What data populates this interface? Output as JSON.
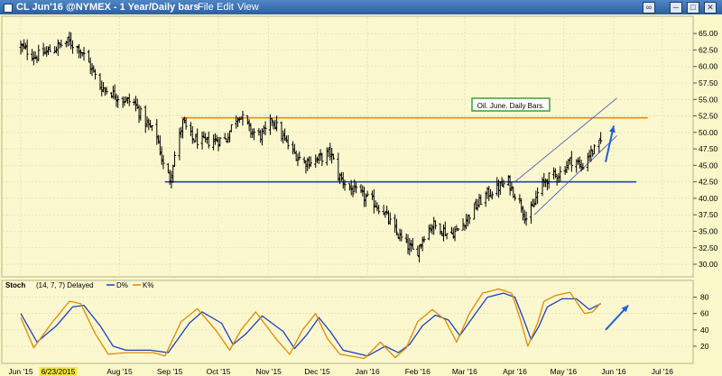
{
  "window": {
    "title": "CL Jun'16 @NYMEX - 1 Year/Daily bars",
    "menu": [
      "File",
      "Edit",
      "View"
    ]
  },
  "colors": {
    "background": "#faf7c8",
    "panel_bg": "#fbf8cf",
    "resistance": "#f28c00",
    "support": "#1f3fbf",
    "channel": "#3a4fbf",
    "arrow": "#1f5fd6",
    "stoch_d": "#1f3fbf",
    "stoch_k": "#e08a00",
    "highlight": "#f5e642"
  },
  "chart_data": [
    {
      "type": "ohlc",
      "name": "price",
      "x_ticks": [
        "Jun '15",
        "6/23/2015",
        "Aug '15",
        "Sep '15",
        "Oct '15",
        "Nov '15",
        "Dec '15",
        "Jan '16",
        "Feb '16",
        "Mar '16",
        "Apr '16",
        "May '16",
        "Jun '16",
        "Jul '16"
      ],
      "x_tick_dates": [
        "2015-06-01",
        "2015-06-23",
        "2015-08-01",
        "2015-09-01",
        "2015-10-01",
        "2015-11-01",
        "2015-12-01",
        "2016-01-01",
        "2016-02-01",
        "2016-03-01",
        "2016-04-01",
        "2016-05-01",
        "2016-06-01",
        "2016-07-01"
      ],
      "highlighted_date_label": "6/23/2015",
      "y_ticks": [
        "30.00",
        "32.50",
        "35.00",
        "37.50",
        "40.00",
        "42.50",
        "45.00",
        "47.50",
        "50.00",
        "52.50",
        "55.00",
        "57.50",
        "60.00",
        "62.50",
        "65.00"
      ],
      "ylim": [
        28.5,
        66.8
      ],
      "close_path": [
        [
          "2015-06-01",
          63.0
        ],
        [
          "2015-06-10",
          61.5
        ],
        [
          "2015-06-20",
          62.5
        ],
        [
          "2015-06-30",
          63.8
        ],
        [
          "2015-07-07",
          62.8
        ],
        [
          "2015-07-13",
          60.5
        ],
        [
          "2015-07-20",
          57.0
        ],
        [
          "2015-07-27",
          56.0
        ],
        [
          "2015-08-03",
          55.0
        ],
        [
          "2015-08-10",
          54.5
        ],
        [
          "2015-08-17",
          51.5
        ],
        [
          "2015-08-24",
          49.5
        ],
        [
          "2015-08-28",
          45.0
        ],
        [
          "2015-09-01",
          43.0
        ],
        [
          "2015-09-04",
          46.5
        ],
        [
          "2015-09-09",
          51.5
        ],
        [
          "2015-09-15",
          49.0
        ],
        [
          "2015-09-22",
          48.5
        ],
        [
          "2015-09-29",
          48.8
        ],
        [
          "2015-10-06",
          49.0
        ],
        [
          "2015-10-10",
          51.5
        ],
        [
          "2015-10-14",
          52.8
        ],
        [
          "2015-10-21",
          50.2
        ],
        [
          "2015-10-27",
          49.5
        ],
        [
          "2015-11-01",
          50.5
        ],
        [
          "2015-11-03",
          52.2
        ],
        [
          "2015-11-09",
          49.5
        ],
        [
          "2015-11-16",
          47.0
        ],
        [
          "2015-11-23",
          45.5
        ],
        [
          "2015-11-30",
          45.8
        ],
        [
          "2015-12-05",
          46.3
        ],
        [
          "2015-12-09",
          47.0
        ],
        [
          "2015-12-14",
          43.5
        ],
        [
          "2015-12-21",
          41.5
        ],
        [
          "2015-12-28",
          40.5
        ],
        [
          "2016-01-04",
          39.5
        ],
        [
          "2016-01-11",
          38.0
        ],
        [
          "2016-01-18",
          35.0
        ],
        [
          "2016-01-25",
          33.0
        ],
        [
          "2016-01-31",
          31.5
        ],
        [
          "2016-02-05",
          34.5
        ],
        [
          "2016-02-10",
          36.0
        ],
        [
          "2016-02-15",
          35.5
        ],
        [
          "2016-02-20",
          34.5
        ],
        [
          "2016-02-25",
          35.0
        ],
        [
          "2016-03-01",
          36.5
        ],
        [
          "2016-03-07",
          38.5
        ],
        [
          "2016-03-14",
          40.5
        ],
        [
          "2016-03-21",
          41.5
        ],
        [
          "2016-03-28",
          42.5
        ],
        [
          "2016-03-31",
          41.0
        ],
        [
          "2016-04-04",
          39.5
        ],
        [
          "2016-04-08",
          37.0
        ],
        [
          "2016-04-12",
          38.5
        ],
        [
          "2016-04-16",
          41.5
        ],
        [
          "2016-04-21",
          43.0
        ],
        [
          "2016-04-26",
          43.5
        ],
        [
          "2016-04-30",
          44.0
        ],
        [
          "2016-05-04",
          45.5
        ],
        [
          "2016-05-08",
          46.0
        ],
        [
          "2016-05-12",
          44.5
        ],
        [
          "2016-05-16",
          46.5
        ],
        [
          "2016-05-21",
          47.5
        ],
        [
          "2016-05-24",
          48.5
        ]
      ],
      "annotation": "Oil. June. Daily Bars.",
      "horizontal_lines": [
        {
          "role": "resistance",
          "value": 52.2,
          "start": "2015-09-08",
          "end": "2016-06-22"
        },
        {
          "role": "support",
          "value": 42.5,
          "start": "2015-08-29",
          "end": "2016-06-15"
        }
      ],
      "channel_lines": [
        {
          "start": [
            "2016-04-13",
            37.5
          ],
          "end": [
            "2016-06-03",
            49.5
          ]
        },
        {
          "start": [
            "2016-04-01",
            42.5
          ],
          "end": [
            "2016-06-03",
            55.2
          ]
        }
      ],
      "arrow": {
        "start": [
          "2016-05-27",
          45.5
        ],
        "end": [
          "2016-06-01",
          51.0
        ]
      }
    },
    {
      "type": "line",
      "name": "stochastic",
      "label": "Stoch",
      "params": "(14, 7, 7) Delayed",
      "legend": [
        "D%",
        "K%"
      ],
      "y_ticks": [
        "20",
        "40",
        "60",
        "80"
      ],
      "ylim": [
        0,
        95
      ],
      "series": [
        {
          "name": "D%",
          "points": [
            [
              "2015-06-01",
              60
            ],
            [
              "2015-06-11",
              25
            ],
            [
              "2015-06-23",
              45
            ],
            [
              "2015-07-03",
              68
            ],
            [
              "2015-07-10",
              70
            ],
            [
              "2015-07-20",
              45
            ],
            [
              "2015-07-28",
              20
            ],
            [
              "2015-08-05",
              15
            ],
            [
              "2015-08-20",
              15
            ],
            [
              "2015-08-31",
              12
            ],
            [
              "2015-09-13",
              48
            ],
            [
              "2015-09-21",
              62
            ],
            [
              "2015-10-03",
              48
            ],
            [
              "2015-10-10",
              22
            ],
            [
              "2015-10-18",
              35
            ],
            [
              "2015-10-28",
              57
            ],
            [
              "2015-11-10",
              38
            ],
            [
              "2015-11-17",
              17
            ],
            [
              "2015-11-25",
              35
            ],
            [
              "2015-12-02",
              55
            ],
            [
              "2015-12-09",
              38
            ],
            [
              "2015-12-17",
              15
            ],
            [
              "2016-01-01",
              8
            ],
            [
              "2016-01-12",
              20
            ],
            [
              "2016-01-20",
              12
            ],
            [
              "2016-01-27",
              22
            ],
            [
              "2016-02-04",
              45
            ],
            [
              "2016-02-12",
              58
            ],
            [
              "2016-02-20",
              52
            ],
            [
              "2016-02-27",
              33
            ],
            [
              "2016-03-07",
              58
            ],
            [
              "2016-03-15",
              80
            ],
            [
              "2016-03-25",
              85
            ],
            [
              "2016-04-01",
              80
            ],
            [
              "2016-04-06",
              55
            ],
            [
              "2016-04-11",
              28
            ],
            [
              "2016-04-16",
              45
            ],
            [
              "2016-04-21",
              68
            ],
            [
              "2016-04-30",
              78
            ],
            [
              "2016-05-09",
              78
            ],
            [
              "2016-05-17",
              65
            ],
            [
              "2016-05-24",
              72
            ]
          ]
        },
        {
          "name": "K%",
          "points": [
            [
              "2015-06-01",
              55
            ],
            [
              "2015-06-09",
              18
            ],
            [
              "2015-06-20",
              48
            ],
            [
              "2015-07-01",
              75
            ],
            [
              "2015-07-08",
              72
            ],
            [
              "2015-07-17",
              35
            ],
            [
              "2015-07-25",
              10
            ],
            [
              "2015-08-05",
              12
            ],
            [
              "2015-08-22",
              12
            ],
            [
              "2015-08-29",
              8
            ],
            [
              "2015-09-08",
              50
            ],
            [
              "2015-09-18",
              66
            ],
            [
              "2015-09-30",
              38
            ],
            [
              "2015-10-08",
              15
            ],
            [
              "2015-10-15",
              40
            ],
            [
              "2015-10-24",
              62
            ],
            [
              "2015-11-06",
              28
            ],
            [
              "2015-11-14",
              10
            ],
            [
              "2015-11-22",
              40
            ],
            [
              "2015-11-30",
              60
            ],
            [
              "2015-12-07",
              30
            ],
            [
              "2015-12-15",
              10
            ],
            [
              "2015-12-30",
              5
            ],
            [
              "2016-01-09",
              25
            ],
            [
              "2016-01-18",
              6
            ],
            [
              "2016-01-25",
              18
            ],
            [
              "2016-02-01",
              50
            ],
            [
              "2016-02-10",
              65
            ],
            [
              "2016-02-18",
              52
            ],
            [
              "2016-02-25",
              25
            ],
            [
              "2016-03-04",
              60
            ],
            [
              "2016-03-12",
              85
            ],
            [
              "2016-03-22",
              90
            ],
            [
              "2016-03-30",
              85
            ],
            [
              "2016-04-04",
              55
            ],
            [
              "2016-04-09",
              20
            ],
            [
              "2016-04-15",
              48
            ],
            [
              "2016-04-19",
              75
            ],
            [
              "2016-04-26",
              82
            ],
            [
              "2016-05-05",
              86
            ],
            [
              "2016-05-14",
              60
            ],
            [
              "2016-05-19",
              62
            ],
            [
              "2016-05-24",
              73
            ]
          ]
        }
      ],
      "arrow": {
        "start": [
          "2016-05-27",
          40
        ],
        "end": [
          "2016-06-10",
          70
        ]
      }
    }
  ]
}
